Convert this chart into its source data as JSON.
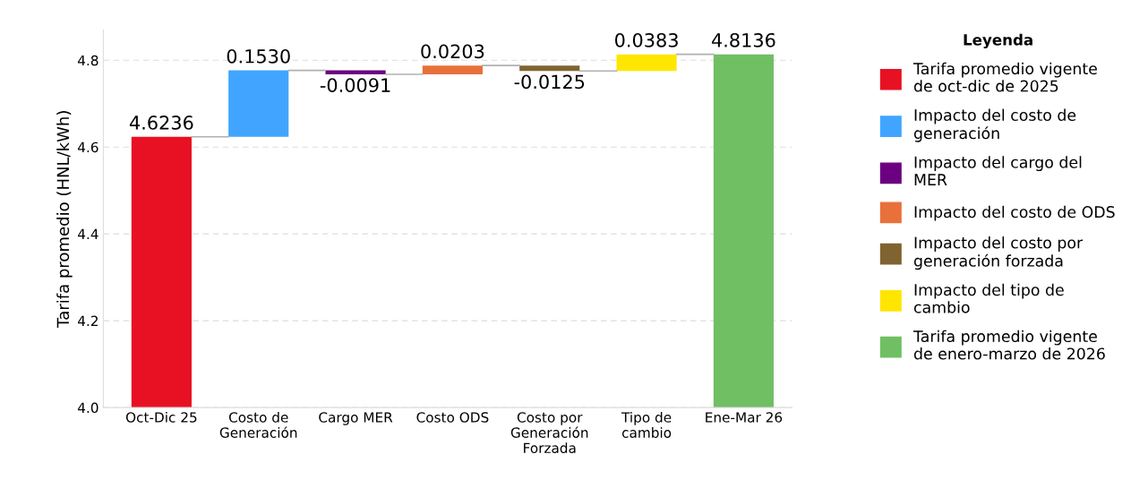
{
  "chart_data": {
    "type": "bar",
    "ylabel": "Tarifa promedio (HNL/kWh)",
    "legend_title": "Leyenda",
    "legend": "right",
    "categories": [
      "Oct-Dic 25",
      "Costo de\nGeneración",
      "Cargo MER",
      "Costo ODS",
      "Costo por\nGeneración\nForzada",
      "Tipo de\ncambio",
      "Ene-Mar 26"
    ],
    "series": [
      {
        "name": "Tarifa promedio vigente\nde oct-dic de 2025",
        "color": "#e81123",
        "values": [
          4.6236,
          null,
          null,
          null,
          null,
          null,
          null
        ],
        "base": [
          0,
          null,
          null,
          null,
          null,
          null,
          null
        ],
        "value_labels": [
          "4.6236",
          null,
          null,
          null,
          null,
          null,
          null
        ]
      },
      {
        "name": "Impacto del costo de\ngeneración",
        "color": "#41a5ff",
        "values": [
          null,
          0.153,
          null,
          null,
          null,
          null,
          null
        ],
        "base": [
          null,
          4.6236,
          null,
          null,
          null,
          null,
          null
        ],
        "value_labels": [
          null,
          "0.1530",
          null,
          null,
          null,
          null,
          null
        ]
      },
      {
        "name": "Impacto del cargo del\nMER",
        "color": "#6b0080",
        "values": [
          null,
          null,
          -0.0091,
          null,
          null,
          null,
          null
        ],
        "base": [
          null,
          null,
          4.7766,
          null,
          null,
          null,
          null
        ],
        "value_labels": [
          null,
          null,
          "-0.0091",
          null,
          null,
          null,
          null
        ]
      },
      {
        "name": "Impacto del costo de ODS",
        "color": "#e8703a",
        "values": [
          null,
          null,
          null,
          0.0203,
          null,
          null,
          null
        ],
        "base": [
          null,
          null,
          null,
          4.7675,
          null,
          null,
          null
        ],
        "value_labels": [
          null,
          null,
          null,
          "0.0203",
          null,
          null,
          null
        ]
      },
      {
        "name": "Impacto del costo por\ngeneración forzada",
        "color": "#7f6431",
        "values": [
          null,
          null,
          null,
          null,
          -0.0125,
          null,
          null
        ],
        "base": [
          null,
          null,
          null,
          null,
          4.7878,
          null,
          null
        ],
        "value_labels": [
          null,
          null,
          null,
          null,
          "-0.0125",
          null,
          null
        ]
      },
      {
        "name": "Impacto del tipo de\ncambio",
        "color": "#ffe600",
        "values": [
          null,
          null,
          null,
          null,
          null,
          0.0383,
          null
        ],
        "base": [
          null,
          null,
          null,
          null,
          null,
          4.7753,
          null
        ],
        "value_labels": [
          null,
          null,
          null,
          null,
          null,
          "0.0383",
          null
        ]
      },
      {
        "name": "Tarifa promedio vigente\nde enero-marzo de 2026",
        "color": "#70bf63",
        "values": [
          null,
          null,
          null,
          null,
          null,
          null,
          4.8136
        ],
        "base": [
          null,
          null,
          null,
          null,
          null,
          null,
          0
        ],
        "value_labels": [
          null,
          null,
          null,
          null,
          null,
          null,
          "4.8136"
        ]
      }
    ],
    "ylim": [
      4.0,
      4.87
    ],
    "yticks": [
      {
        "value": 4.0,
        "label": "4.0"
      },
      {
        "value": 4.2,
        "label": "4.2"
      },
      {
        "value": 4.4,
        "label": "4.4"
      },
      {
        "value": 4.6,
        "label": "4.6"
      },
      {
        "value": 4.8,
        "label": "4.8"
      }
    ],
    "grid": "y"
  }
}
